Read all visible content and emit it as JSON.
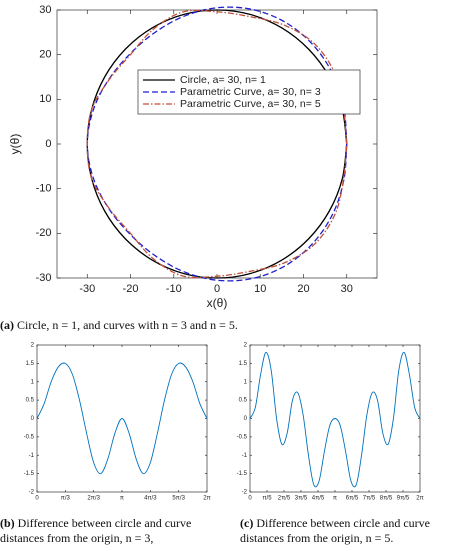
{
  "chart_data": [
    {
      "type": "line",
      "xlabel": "x(θ)",
      "ylabel": "y(θ)",
      "xlim": [
        -37,
        37
      ],
      "ylim": [
        -30,
        30
      ],
      "xticks": [
        -30,
        -20,
        -10,
        0,
        10,
        20,
        30
      ],
      "yticks": [
        -30,
        -20,
        -10,
        0,
        10,
        20,
        30
      ],
      "legend": "northeast",
      "caption_label": "(a)",
      "caption": "Circle, n = 1, and curves with n = 3 and n = 5.",
      "series": [
        {
          "name": "Circle, a= 30, n= 1",
          "color": "#000000",
          "dash": "solid",
          "x": [
            30,
            28.98,
            25.98,
            21.21,
            15,
            7.76,
            0,
            -7.76,
            -15,
            -21.21,
            -25.98,
            -28.98,
            -30,
            -28.98,
            -25.98,
            -21.21,
            -15,
            -7.76,
            0,
            7.76,
            15,
            21.21,
            25.98,
            28.98,
            30
          ],
          "values": [
            0,
            7.76,
            15,
            21.21,
            25.98,
            28.98,
            30,
            28.98,
            25.98,
            21.21,
            15,
            7.76,
            0,
            -7.76,
            -15,
            -21.21,
            -25.98,
            -28.98,
            -30,
            -28.98,
            -25.98,
            -21.21,
            -15,
            -7.76,
            0
          ]
        },
        {
          "name": "Parametric Curve, a= 30, n= 3",
          "color": "#1f1fd0",
          "dash": "dashed",
          "x": [
            30,
            29.36,
            26.85,
            22.2,
            15.75,
            8.08,
            0,
            -7.66,
            -14.4,
            -20.15,
            -25.03,
            -28.59,
            -30,
            -28.59,
            -25.03,
            -20.15,
            -14.4,
            -7.66,
            0,
            8.08,
            15.75,
            22.2,
            26.85,
            29.36,
            30
          ],
          "values": [
            0,
            7.87,
            15.5,
            22.2,
            27.28,
            30.14,
            30.5,
            28.59,
            24.94,
            20.15,
            14.45,
            7.66,
            0,
            -7.66,
            -14.45,
            -20.15,
            -24.94,
            -28.59,
            -30.5,
            -30.14,
            -27.28,
            -22.2,
            -15.5,
            -7.87,
            0
          ]
        },
        {
          "name": "Parametric Curve, a= 30, n= 5",
          "color": "#c0503a",
          "dash": "dashdot",
          "x": [
            30,
            29.27,
            27.28,
            22.49,
            15.4,
            7.64,
            0,
            -7.92,
            -14.8,
            -20.01,
            -24.94,
            -28.98,
            -30,
            -28.98,
            -24.94,
            -20.01,
            -14.8,
            -7.92,
            0,
            7.64,
            15.4,
            22.49,
            27.28,
            29.27,
            30
          ],
          "values": [
            0,
            7.84,
            15.75,
            22.49,
            26.67,
            28.5,
            29.6,
            29.56,
            25.63,
            20.01,
            14.4,
            7.76,
            0,
            -7.76,
            -14.4,
            -20.01,
            -25.63,
            -29.56,
            -29.6,
            -28.5,
            -26.67,
            -22.49,
            -15.75,
            -7.84,
            0
          ]
        }
      ]
    },
    {
      "type": "line",
      "xlim": [
        0,
        6.2832
      ],
      "ylim": [
        -2,
        2
      ],
      "xticks": [
        0,
        {
          "value": 1.0472,
          "label": "π/3"
        },
        {
          "value": 2.0944,
          "label": "2π/3"
        },
        {
          "value": 3.1416,
          "label": "π"
        },
        {
          "value": 4.1888,
          "label": "4π/3"
        },
        {
          "value": 5.236,
          "label": "5π/3"
        },
        {
          "value": 6.2832,
          "label": "2π"
        }
      ],
      "yticks": [
        -2,
        -1.5,
        -1,
        -0.5,
        0,
        0.5,
        1,
        1.5,
        2
      ],
      "caption_label": "(b)",
      "caption": "Difference between circle and curve distances from the origin, n = 3,",
      "series": [
        {
          "color": "#0072bd",
          "dash": "solid",
          "x": [
            0,
            0.262,
            0.524,
            0.785,
            1.047,
            1.309,
            1.571,
            1.833,
            2.094,
            2.356,
            2.618,
            2.88,
            3.142,
            3.403,
            3.665,
            3.927,
            4.189,
            4.451,
            4.712,
            4.974,
            5.236,
            5.498,
            5.76,
            6.021,
            6.283
          ],
          "values": [
            0,
            0.4,
            1.0,
            1.4,
            1.5,
            1.2,
            0.5,
            -0.4,
            -1.2,
            -1.5,
            -1.1,
            -0.4,
            0,
            -0.4,
            -1.1,
            -1.5,
            -1.2,
            -0.4,
            0.5,
            1.2,
            1.5,
            1.4,
            1.0,
            0.4,
            0
          ]
        }
      ]
    },
    {
      "type": "line",
      "xlim": [
        0,
        6.2832
      ],
      "ylim": [
        -2,
        2
      ],
      "xticks": [
        0,
        {
          "value": 0.6283,
          "label": "π/5"
        },
        {
          "value": 1.2566,
          "label": "2π/5"
        },
        {
          "value": 1.885,
          "label": "3π/5"
        },
        {
          "value": 2.5133,
          "label": "4π/5"
        },
        {
          "value": 3.1416,
          "label": "π"
        },
        {
          "value": 3.7699,
          "label": "6π/5"
        },
        {
          "value": 4.3982,
          "label": "7π/5"
        },
        {
          "value": 5.0265,
          "label": "8π/5"
        },
        {
          "value": 5.6549,
          "label": "9π/5"
        },
        {
          "value": 6.2832,
          "label": "2π"
        }
      ],
      "yticks": [
        -2,
        -1.5,
        -1,
        -0.5,
        0,
        0.5,
        1,
        1.5,
        2
      ],
      "caption_label": "(c)",
      "caption": "Difference between circle and curve distances from the origin, n = 5.",
      "series": [
        {
          "color": "#0072bd",
          "dash": "solid",
          "x": [
            0,
            0.196,
            0.393,
            0.589,
            0.785,
            0.982,
            1.178,
            1.374,
            1.571,
            1.767,
            1.963,
            2.16,
            2.356,
            2.553,
            2.749,
            2.945,
            3.142,
            3.338,
            3.534,
            3.731,
            3.927,
            4.123,
            4.32,
            4.516,
            4.712,
            4.909,
            5.105,
            5.301,
            5.498,
            5.694,
            5.89,
            6.087,
            6.283
          ],
          "values": [
            0,
            0.3,
            1.2,
            1.8,
            1.3,
            0.0,
            -0.7,
            -0.4,
            0.5,
            0.7,
            0.1,
            -1.0,
            -1.8,
            -1.7,
            -0.9,
            -0.2,
            0,
            -0.2,
            -0.9,
            -1.7,
            -1.8,
            -1.0,
            0.1,
            0.7,
            0.5,
            -0.4,
            -0.7,
            0.0,
            1.3,
            1.8,
            1.2,
            0.3,
            0
          ]
        }
      ]
    }
  ]
}
